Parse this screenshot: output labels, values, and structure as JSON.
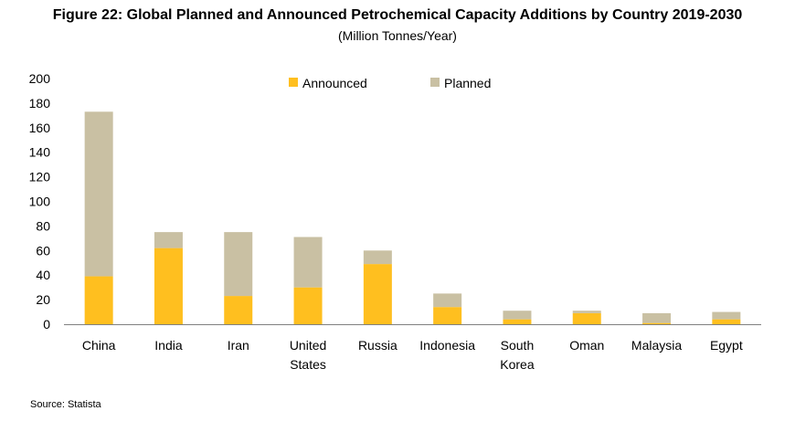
{
  "header": {
    "title": "Figure 22: Global Planned and Announced Petrochemical Capacity Additions by Country 2019-2030",
    "subtitle": "(Million Tonnes/Year)"
  },
  "footer": {
    "source": "Source: Statista"
  },
  "colors": {
    "announced": "#FFBF1F",
    "planned": "#C9C0A3",
    "axis": "#808080"
  },
  "chart_data": {
    "type": "bar",
    "stacked": true,
    "title": "Figure 22: Global Planned and Announced Petrochemical Capacity Additions by Country 2019-2030",
    "subtitle": "(Million Tonnes/Year)",
    "categories": [
      "China",
      "India",
      "Iran",
      "United States",
      "Russia",
      "Indonesia",
      "South Korea",
      "Oman",
      "Malaysia",
      "Egypt"
    ],
    "category_lines": [
      [
        "China"
      ],
      [
        "India"
      ],
      [
        "Iran"
      ],
      [
        "United",
        "States"
      ],
      [
        "Russia"
      ],
      [
        "Indonesia"
      ],
      [
        "South",
        "Korea"
      ],
      [
        "Oman"
      ],
      [
        "Malaysia"
      ],
      [
        "Egypt"
      ]
    ],
    "series": [
      {
        "name": "Announced",
        "values": [
          39,
          62,
          23,
          30,
          49,
          14,
          4,
          9,
          1,
          4
        ]
      },
      {
        "name": "Planned",
        "values": [
          134,
          13,
          52,
          41,
          11,
          11,
          7,
          2,
          8,
          6
        ]
      }
    ],
    "ylim": [
      0,
      200
    ],
    "yticks": [
      0,
      20,
      40,
      60,
      80,
      100,
      120,
      140,
      160,
      180,
      200
    ],
    "grid": false,
    "legend": "top-center"
  }
}
